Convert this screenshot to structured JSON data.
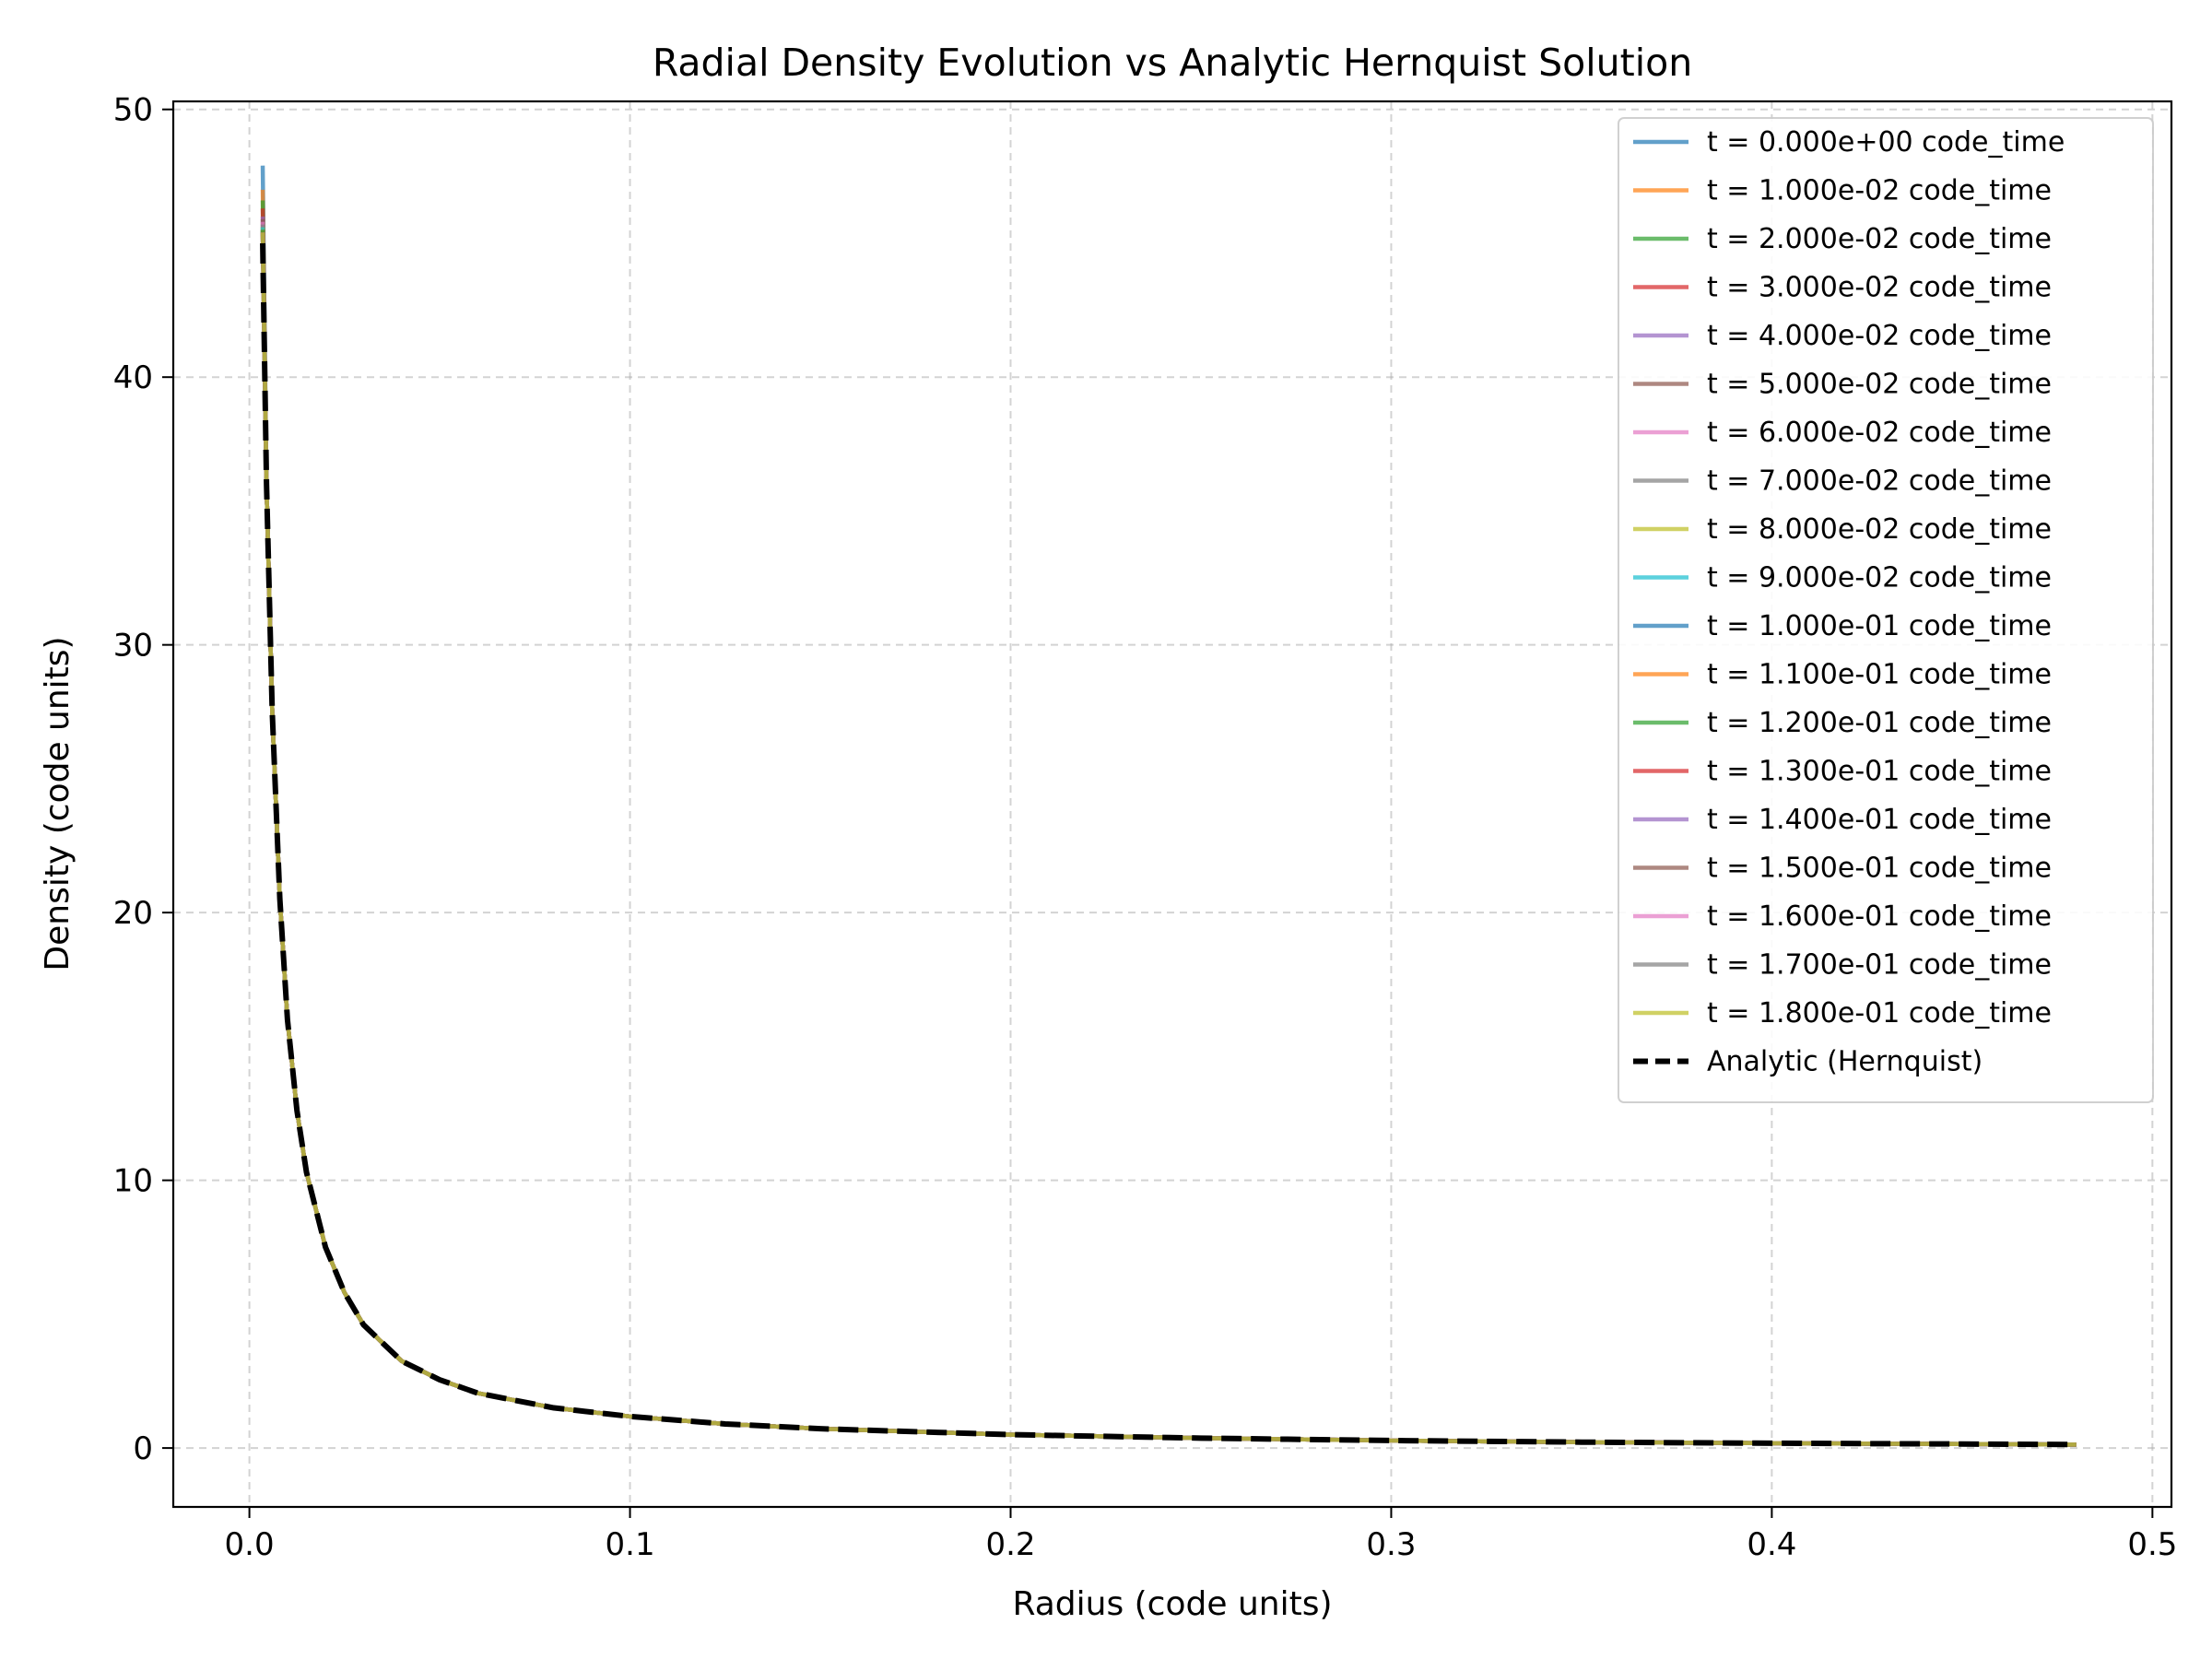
{
  "chart_data": {
    "type": "line",
    "title": "Radial Density Evolution vs Analytic Hernquist Solution",
    "xlabel": "Radius (code units)",
    "ylabel": "Density (code units)",
    "xlim": [
      -0.02,
      0.505
    ],
    "ylim": [
      -2.2,
      50.3
    ],
    "xticks": [
      0.0,
      0.1,
      0.2,
      0.3,
      0.4,
      0.5
    ],
    "xtick_labels": [
      "0.0",
      "0.1",
      "0.2",
      "0.3",
      "0.4",
      "0.5"
    ],
    "yticks": [
      0,
      10,
      20,
      30,
      40,
      50
    ],
    "ytick_labels": [
      "0",
      "10",
      "20",
      "30",
      "40",
      "50"
    ],
    "grid": true,
    "legend_position": "top-right",
    "x": [
      0.0035,
      0.0045,
      0.006,
      0.008,
      0.01,
      0.0125,
      0.015,
      0.02,
      0.025,
      0.03,
      0.04,
      0.05,
      0.06,
      0.08,
      0.1,
      0.125,
      0.15,
      0.2,
      0.25,
      0.3,
      0.35,
      0.4,
      0.45,
      0.48
    ],
    "series": [
      {
        "name": "t = 0.000e+00 code_time",
        "color": "#1f77b4",
        "peak": 47.9
      },
      {
        "name": "t = 1.000e-02 code_time",
        "color": "#ff7f0e",
        "peak": 47.0
      },
      {
        "name": "t = 2.000e-02 code_time",
        "color": "#2ca02c",
        "peak": 46.6
      },
      {
        "name": "t = 3.000e-02 code_time",
        "color": "#d62728",
        "peak": 46.3
      },
      {
        "name": "t = 4.000e-02 code_time",
        "color": "#9467bd",
        "peak": 46.0
      },
      {
        "name": "t = 5.000e-02 code_time",
        "color": "#8c564b",
        "peak": 45.9
      },
      {
        "name": "t = 6.000e-02 code_time",
        "color": "#e377c2",
        "peak": 45.8
      },
      {
        "name": "t = 7.000e-02 code_time",
        "color": "#7f7f7f",
        "peak": 45.7
      },
      {
        "name": "t = 8.000e-02 code_time",
        "color": "#bcbd22",
        "peak": 45.6
      },
      {
        "name": "t = 9.000e-02 code_time",
        "color": "#17becf",
        "peak": 45.6
      },
      {
        "name": "t = 1.000e-01 code_time",
        "color": "#1f77b4",
        "peak": 45.5
      },
      {
        "name": "t = 1.100e-01 code_time",
        "color": "#ff7f0e",
        "peak": 45.5
      },
      {
        "name": "t = 1.200e-01 code_time",
        "color": "#2ca02c",
        "peak": 45.5
      },
      {
        "name": "t = 1.300e-01 code_time",
        "color": "#d62728",
        "peak": 45.4
      },
      {
        "name": "t = 1.400e-01 code_time",
        "color": "#9467bd",
        "peak": 45.4
      },
      {
        "name": "t = 1.500e-01 code_time",
        "color": "#8c564b",
        "peak": 45.4
      },
      {
        "name": "t = 1.600e-01 code_time",
        "color": "#e377c2",
        "peak": 45.4
      },
      {
        "name": "t = 1.700e-01 code_time",
        "color": "#7f7f7f",
        "peak": 45.4
      },
      {
        "name": "t = 1.800e-01 code_time",
        "color": "#bcbd22",
        "peak": 45.4
      }
    ],
    "analytic": {
      "name": "Analytic (Hernquist)",
      "color": "#000000",
      "style": "dashed",
      "y": [
        45.0,
        36.0,
        27.5,
        20.5,
        16.0,
        12.6,
        10.3,
        7.5,
        5.8,
        4.6,
        3.25,
        2.55,
        2.05,
        1.5,
        1.18,
        0.9,
        0.72,
        0.5,
        0.37,
        0.28,
        0.22,
        0.18,
        0.15,
        0.13
      ]
    }
  }
}
